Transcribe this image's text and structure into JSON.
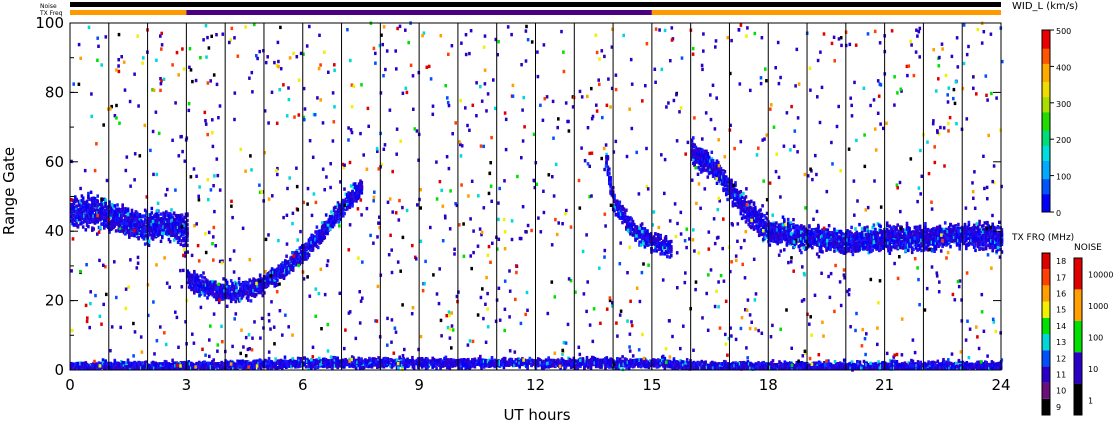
{
  "chart_data": {
    "type": "heatmap",
    "xlabel": "UT hours",
    "ylabel": "Range Gate",
    "xlim": [
      0,
      24
    ],
    "ylim": [
      0,
      100
    ],
    "x_ticks": [
      "0",
      "3",
      "6",
      "9",
      "12",
      "15",
      "18",
      "21",
      "24"
    ],
    "y_ticks": [
      "0",
      "20",
      "40",
      "60",
      "80",
      "100"
    ],
    "grid": "vertical lines every hour",
    "top_bars": {
      "noise_label": "Noise",
      "txfreq_label": "TX Freq",
      "noise_color": "#000000",
      "txfreq_segments": [
        {
          "from": 0,
          "to": 3,
          "color": "#ff9900"
        },
        {
          "from": 3,
          "to": 15,
          "color": "#4b0082"
        },
        {
          "from": 15,
          "to": 24,
          "color": "#ff9900"
        }
      ]
    },
    "colorbars": {
      "width": {
        "title": "WID_L (km/s)",
        "ticks": [
          "0",
          "100",
          "200",
          "300",
          "400",
          "500"
        ],
        "range": [
          0,
          500
        ]
      },
      "txfreq": {
        "title": "TX FRQ (MHz)",
        "ticks": [
          "9",
          "10",
          "11",
          "12",
          "13",
          "14",
          "15",
          "16",
          "17",
          "18"
        ],
        "colors": [
          "#000000",
          "#6a0f7a",
          "#2a00c8",
          "#0050ff",
          "#00d8d8",
          "#00e000",
          "#f0f000",
          "#ffa000",
          "#ff4000",
          "#e00000"
        ]
      },
      "noise": {
        "title": "NOISE",
        "ticks": [
          "1",
          "10",
          "100",
          "1000",
          "10000"
        ],
        "colors": [
          "#000000",
          "#2a00c8",
          "#00e000",
          "#ffa000",
          "#e00000"
        ]
      }
    },
    "scatter_bands": [
      {
        "name": "",
        "x": [
          0,
          0.5,
          1,
          1.5,
          2,
          2.5,
          3
        ],
        "y": [
          45,
          46,
          44,
          42,
          41,
          42,
          40
        ]
      },
      {
        "name": "",
        "x": [
          3,
          3.5,
          4,
          4.5,
          5,
          5.5,
          6,
          6.5,
          7,
          7.5
        ],
        "y": [
          26,
          24,
          22,
          23,
          25,
          29,
          34,
          40,
          47,
          53
        ]
      },
      {
        "name": "",
        "x": [
          13.8,
          14,
          14.5,
          15,
          15.5
        ],
        "y": [
          60,
          48,
          40,
          37,
          35
        ]
      },
      {
        "name": "",
        "x": [
          16,
          16.5,
          17,
          17.5,
          18,
          19,
          20,
          21,
          22,
          23,
          24
        ],
        "y": [
          63,
          59,
          52,
          45,
          40,
          38,
          37,
          38,
          38,
          39,
          38
        ]
      },
      {
        "name": "",
        "x": [
          0,
          3,
          6,
          9,
          12,
          15,
          16,
          18,
          24
        ],
        "y": [
          1,
          1,
          2,
          2,
          2,
          2,
          1,
          1,
          1
        ]
      }
    ]
  }
}
